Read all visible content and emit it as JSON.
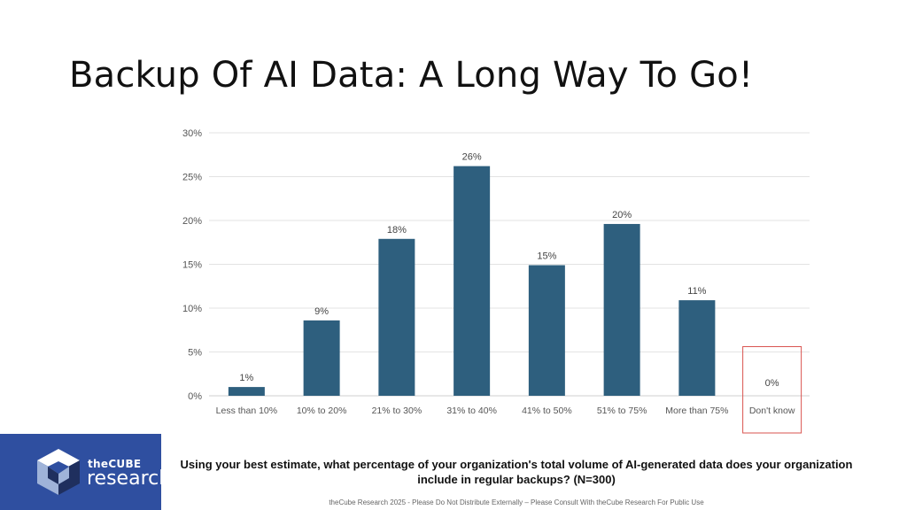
{
  "slide": {
    "title": "Backup Of AI Data: A Long Way To Go!"
  },
  "logo": {
    "line1": "theCUBE",
    "line2": "research",
    "colors": {
      "background": "#2f4fa0",
      "cube_dark": "#1f2f5e",
      "cube_light": "#9fb3d9",
      "cube_white": "#ffffff"
    }
  },
  "question": "Using your best estimate, what percentage of your organization's total volume of AI-generated data does your organization include in regular backups? (N=300)",
  "footer": "theCube Research 2025 - Please Do Not Distribute Externally – Please Consult With theCube Research For Public Use",
  "chart_data": {
    "type": "bar",
    "categories": [
      "Less than 10%",
      "10% to 20%",
      "21% to 30%",
      "31% to 40%",
      "41% to 50%",
      "51% to 75%",
      "More than 75%",
      "Don't know"
    ],
    "values": [
      1,
      8.6,
      17.9,
      26.2,
      14.9,
      19.6,
      10.9,
      0
    ],
    "data_labels": [
      "1%",
      "9%",
      "18%",
      "26%",
      "15%",
      "20%",
      "11%",
      "0%"
    ],
    "ylim": [
      0,
      30
    ],
    "yticks": [
      0,
      5,
      10,
      15,
      20,
      25,
      30
    ],
    "ytick_labels": [
      "0%",
      "5%",
      "10%",
      "15%",
      "20%",
      "25%",
      "30%"
    ],
    "grid": true,
    "legend": "none",
    "highlighted_category": "Don't know",
    "colors": {
      "bar": "#2e5f7e",
      "grid": "#e3e3e3",
      "highlight_box": "#d9534f",
      "axis_text": "#555555",
      "label_text": "#444444"
    }
  }
}
